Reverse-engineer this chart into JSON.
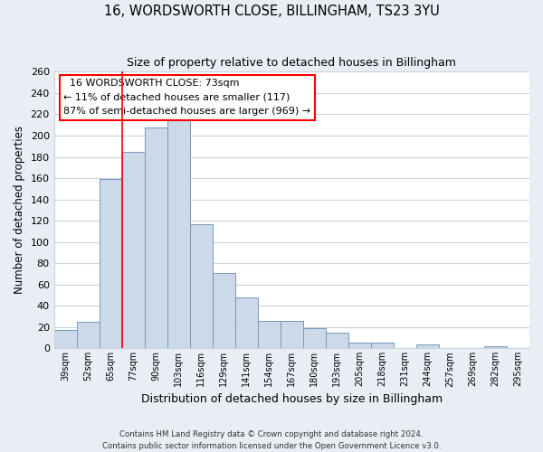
{
  "title": "16, WORDSWORTH CLOSE, BILLINGHAM, TS23 3YU",
  "subtitle": "Size of property relative to detached houses in Billingham",
  "xlabel": "Distribution of detached houses by size in Billingham",
  "ylabel": "Number of detached properties",
  "bar_labels": [
    "39sqm",
    "52sqm",
    "65sqm",
    "77sqm",
    "90sqm",
    "103sqm",
    "116sqm",
    "129sqm",
    "141sqm",
    "154sqm",
    "167sqm",
    "180sqm",
    "193sqm",
    "205sqm",
    "218sqm",
    "231sqm",
    "244sqm",
    "257sqm",
    "269sqm",
    "282sqm",
    "295sqm"
  ],
  "bar_heights": [
    17,
    25,
    159,
    185,
    208,
    215,
    117,
    71,
    48,
    26,
    26,
    19,
    15,
    5,
    5,
    0,
    4,
    0,
    0,
    2,
    0
  ],
  "bar_color": "#ccd9e8",
  "bar_edge_color": "#7799bb",
  "ylim": [
    0,
    260
  ],
  "yticks": [
    0,
    20,
    40,
    60,
    80,
    100,
    120,
    140,
    160,
    180,
    200,
    220,
    240,
    260
  ],
  "red_line_x": 2.5,
  "annotation_title": "16 WORDSWORTH CLOSE: 73sqm",
  "annotation_line1": "← 11% of detached houses are smaller (117)",
  "annotation_line2": "87% of semi-detached houses are larger (969) →",
  "footer1": "Contains HM Land Registry data © Crown copyright and database right 2024.",
  "footer2": "Contains public sector information licensed under the Open Government Licence v3.0.",
  "bg_color": "#e8eef4",
  "plot_bg_color": "#ffffff",
  "grid_color": "#c8d4de"
}
